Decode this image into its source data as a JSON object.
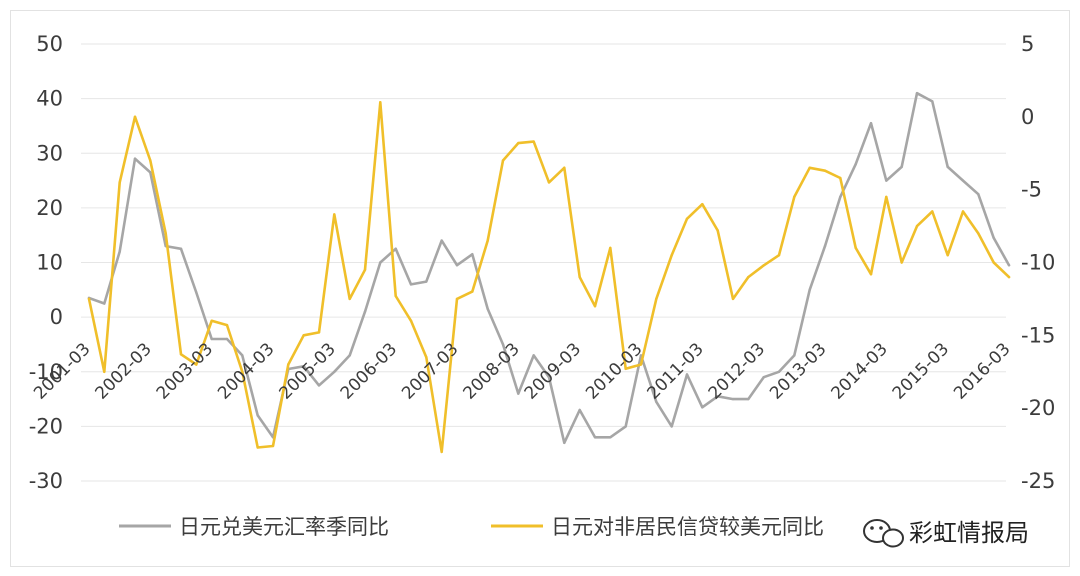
{
  "chart_data": {
    "type": "line",
    "title": "",
    "grid": "horizontal",
    "legend_position": "bottom",
    "left_axis": {
      "ylim": [
        -30,
        50
      ],
      "ticks": [
        -30,
        -20,
        -10,
        0,
        10,
        20,
        30,
        40,
        50
      ]
    },
    "right_axis": {
      "ylim": [
        -25,
        5
      ],
      "ticks": [
        -25,
        -20,
        -15,
        -10,
        -5,
        0,
        5
      ]
    },
    "x_tick_labels": [
      "2001-03",
      "2002-03",
      "2003-03",
      "2004-03",
      "2005-03",
      "2006-03",
      "2007-03",
      "2008-03",
      "2009-03",
      "2010-03",
      "2011-03",
      "2012-03",
      "2013-03",
      "2014-03",
      "2015-03",
      "2016-03"
    ],
    "x": [
      "2001-03",
      "2001-06",
      "2001-09",
      "2001-12",
      "2002-03",
      "2002-06",
      "2002-09",
      "2002-12",
      "2003-03",
      "2003-06",
      "2003-09",
      "2003-12",
      "2004-03",
      "2004-06",
      "2004-09",
      "2004-12",
      "2005-03",
      "2005-06",
      "2005-09",
      "2005-12",
      "2006-03",
      "2006-06",
      "2006-09",
      "2006-12",
      "2007-03",
      "2007-06",
      "2007-09",
      "2007-12",
      "2008-03",
      "2008-06",
      "2008-09",
      "2008-12",
      "2009-03",
      "2009-06",
      "2009-09",
      "2009-12",
      "2010-03",
      "2010-06",
      "2010-09",
      "2010-12",
      "2011-03",
      "2011-06",
      "2011-09",
      "2011-12",
      "2012-03",
      "2012-06",
      "2012-09",
      "2012-12",
      "2013-03",
      "2013-06",
      "2013-09",
      "2013-12",
      "2014-03",
      "2014-06",
      "2014-09",
      "2014-12",
      "2015-03",
      "2015-06",
      "2015-09",
      "2015-12",
      "2016-03"
    ],
    "series": [
      {
        "name": "日元兑美元汇率季同比",
        "axis": "left",
        "color": "#a6a6a6",
        "values": [
          3.5,
          2.5,
          12,
          29,
          26.5,
          13,
          12.5,
          4.5,
          -4,
          -4,
          -7,
          -18,
          -22,
          -9.5,
          -9,
          -12.5,
          -10,
          -7,
          1,
          10,
          12.5,
          6,
          6.5,
          14,
          9.5,
          11.5,
          1.5,
          -5,
          -14,
          -7,
          -11,
          -23,
          -17,
          -22,
          -22,
          -20,
          -7,
          -15.5,
          -20,
          -10.5,
          -16.5,
          -14.5,
          -15,
          -15,
          -11,
          -10,
          -7,
          5,
          13,
          22,
          28,
          35.5,
          25,
          27.5,
          41,
          39.5,
          27.5,
          25,
          22.5,
          14.5,
          9.5
        ]
      },
      {
        "name": "日元对非居民信贷较美元同比",
        "axis": "right",
        "color": "#f0bf2a",
        "values": [
          -12.5,
          -17.5,
          -4.5,
          0,
          -3,
          -8,
          -16.3,
          -17,
          -14,
          -14.3,
          -17.5,
          -22.7,
          -22.6,
          -17,
          -15,
          -14.8,
          -6.7,
          -12.5,
          -10.5,
          1,
          -12.3,
          -14,
          -16.5,
          -23,
          -12.5,
          -12,
          -8.5,
          -3,
          -1.8,
          -1.7,
          -4.5,
          -3.5,
          -11,
          -13,
          -9,
          -17.3,
          -17,
          -12.5,
          -9.5,
          -7,
          -6,
          -7.8,
          -12.5,
          -11,
          -10.2,
          -9.5,
          -5.5,
          -3.5,
          -3.7,
          -4.2,
          -9,
          -10.8,
          -5.5,
          -10,
          -7.5,
          -6.5,
          -9.5,
          -6.5,
          -8,
          -10,
          -11
        ]
      }
    ]
  },
  "watermark": {
    "text": "彩虹情报局",
    "icon": "wechat-icon"
  }
}
